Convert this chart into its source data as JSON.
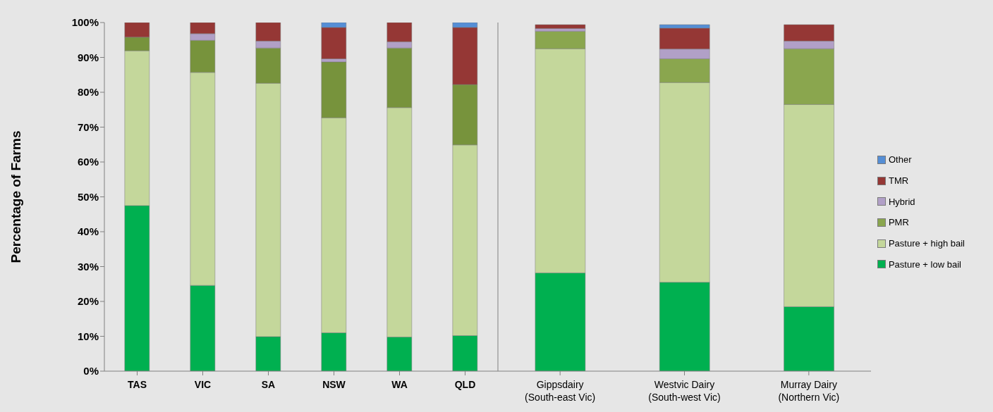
{
  "chart_data": [
    {
      "type": "bar",
      "stacked": true,
      "ylabel": "Percentage of Farms",
      "categories": [
        "TAS",
        "VIC",
        "SA",
        "NSW",
        "WA",
        "QLD"
      ],
      "ylim": [
        0,
        100
      ],
      "yticks": [
        {
          "value": 0,
          "label": "0%"
        },
        {
          "value": 10,
          "label": "10%"
        },
        {
          "value": 20,
          "label": "20%"
        },
        {
          "value": 30,
          "label": "30%"
        },
        {
          "value": 40,
          "label": "40%"
        },
        {
          "value": 50,
          "label": "50%"
        },
        {
          "value": 60,
          "label": "60%"
        },
        {
          "value": 70,
          "label": "70%"
        },
        {
          "value": 80,
          "label": "80%"
        },
        {
          "value": 90,
          "label": "90%"
        },
        {
          "value": 100,
          "label": "100%"
        }
      ],
      "grid": false,
      "legend": false,
      "series": [
        {
          "color": "#00b050",
          "values": [
            47.5,
            24.6,
            9.9,
            11.0,
            9.8,
            10.2
          ]
        },
        {
          "color": "#c4d79b",
          "values": [
            44.4,
            61.1,
            72.7,
            61.7,
            65.8,
            54.7
          ]
        },
        {
          "color": "#77933c",
          "values": [
            3.9,
            9.2,
            10.1,
            16.0,
            17.1,
            17.3
          ]
        },
        {
          "color": "#b1a0c7",
          "values": [
            0,
            1.9,
            2.0,
            0.9,
            1.8,
            0
          ]
        },
        {
          "color": "#953735",
          "values": [
            4.2,
            3.2,
            5.3,
            9.0,
            5.5,
            16.4
          ]
        },
        {
          "color": "#558ed5",
          "values": [
            0,
            0,
            0,
            1.4,
            0,
            1.4
          ]
        }
      ]
    },
    {
      "type": "bar",
      "stacked": true,
      "categories": [
        "Gippsdairy\n(South-east Vic)",
        "Westvic Dairy\n(South-west Vic)",
        "Murray Dairy\n(Northern Vic)"
      ],
      "ylim": [
        0,
        100
      ],
      "tick_labels": "x",
      "grid": false,
      "legend": "right",
      "series": [
        {
          "name": "Pasture + low bail",
          "color": "#00b050",
          "values": [
            28.2,
            25.5,
            18.5
          ]
        },
        {
          "name": "Pasture + high  bail",
          "color": "#c4d79b",
          "values": [
            64.3,
            57.3,
            58.0
          ]
        },
        {
          "name": "PMR",
          "color": "#8aa64e",
          "values": [
            5.0,
            6.8,
            16.0
          ]
        },
        {
          "name": "Hybrid",
          "color": "#b1a0c7",
          "values": [
            0.8,
            2.8,
            2.2
          ]
        },
        {
          "name": "TMR",
          "color": "#953735",
          "values": [
            1.1,
            6.0,
            4.7
          ]
        },
        {
          "name": "Other",
          "color": "#558ed5",
          "values": [
            0,
            1.0,
            0
          ]
        }
      ]
    }
  ]
}
